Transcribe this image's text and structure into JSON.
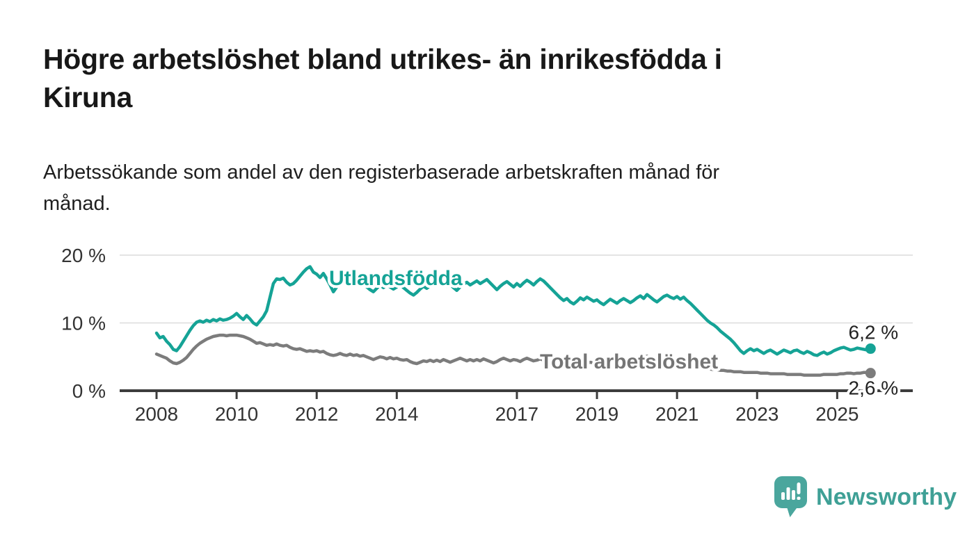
{
  "header": {
    "title": "Högre arbetslöshet bland utrikes- än inrikesfödda i Kiruna",
    "title_lines": [
      "Högre arbetslöshet bland utrikes- än inrikesfödda i",
      "Kiruna"
    ],
    "subtitle": "Arbetssökande som andel av den registerbaserade arbetskraften månad för månad.",
    "subtitle_lines": [
      "Arbetssökande som andel av den registerbaserade arbetskraften månad för",
      "månad."
    ]
  },
  "footer": {
    "brand": "Newsworthy"
  },
  "colors": {
    "accent_teal": "#15a396",
    "logo_teal": "#4aa69d",
    "logo_text_teal": "#3fa096",
    "gray_line": "#7c7c7c",
    "axis": "#3c3c3c",
    "grid": "#dcdcdc",
    "value_label": "#222222"
  },
  "chart_data": {
    "type": "line",
    "title": "Högre arbetslöshet bland utrikes- än inrikesfödda i Kiruna",
    "subtitle": "Arbetssökande som andel av den registerbaserade arbetskraften månad för månad.",
    "grid": "horizontal",
    "x_axis": {
      "unit": "month",
      "start_year": 2008,
      "start_month": 1,
      "end_year": 2025,
      "end_month": 11,
      "tick_years": [
        2008,
        2010,
        2012,
        2014,
        2017,
        2019,
        2021,
        2023,
        2025
      ],
      "tick_labels": [
        "2008",
        "2010",
        "2012",
        "2014",
        "2017",
        "2019",
        "2021",
        "2023",
        "2025"
      ]
    },
    "y_axis": {
      "range": [
        0,
        21
      ],
      "ticks": [
        {
          "value": 0,
          "label": "0 %"
        },
        {
          "value": 10,
          "label": "10 %"
        },
        {
          "value": 20,
          "label": "20 %"
        }
      ]
    },
    "series": [
      {
        "id": "utlandsfodda",
        "name": "Utlandsfödda",
        "color": "#15a396",
        "end_value": 6.2,
        "end_value_label": "6,2 %",
        "values": [
          8.5,
          7.8,
          8.0,
          7.3,
          6.8,
          6.1,
          5.9,
          6.5,
          7.3,
          8.1,
          8.9,
          9.6,
          10.1,
          10.3,
          10.1,
          10.4,
          10.2,
          10.5,
          10.3,
          10.6,
          10.4,
          10.5,
          10.7,
          11.0,
          11.4,
          10.9,
          10.5,
          11.1,
          10.6,
          10.0,
          9.7,
          10.3,
          10.9,
          11.8,
          13.8,
          15.8,
          16.5,
          16.4,
          16.6,
          16.0,
          15.6,
          15.8,
          16.3,
          16.9,
          17.5,
          18.0,
          18.3,
          17.5,
          17.2,
          16.7,
          17.3,
          16.5,
          15.6,
          14.6,
          15.3,
          16.0,
          16.3,
          15.9,
          16.2,
          15.7,
          16.0,
          15.5,
          15.8,
          15.3,
          14.9,
          14.6,
          15.1,
          15.6,
          15.2,
          15.6,
          15.3,
          15.0,
          15.3,
          15.7,
          15.2,
          14.8,
          14.4,
          14.1,
          14.5,
          15.0,
          15.4,
          15.1,
          15.5,
          15.8,
          16.0,
          15.6,
          15.9,
          15.4,
          15.7,
          15.2,
          14.8,
          15.3,
          15.7,
          16.0,
          15.6,
          15.9,
          16.2,
          15.8,
          16.1,
          16.4,
          15.9,
          15.4,
          14.9,
          15.4,
          15.8,
          16.1,
          15.7,
          15.3,
          15.8,
          15.4,
          15.9,
          16.3,
          16.0,
          15.6,
          16.1,
          16.5,
          16.2,
          15.7,
          15.2,
          14.7,
          14.2,
          13.7,
          13.3,
          13.6,
          13.1,
          12.8,
          13.2,
          13.7,
          13.4,
          13.8,
          13.5,
          13.2,
          13.4,
          13.0,
          12.7,
          13.1,
          13.5,
          13.2,
          12.9,
          13.3,
          13.6,
          13.3,
          13.0,
          13.3,
          13.7,
          14.0,
          13.6,
          14.2,
          13.8,
          13.4,
          13.1,
          13.5,
          13.9,
          14.1,
          13.8,
          13.6,
          13.9,
          13.5,
          13.8,
          13.3,
          12.9,
          12.4,
          11.9,
          11.4,
          10.9,
          10.4,
          10.0,
          9.7,
          9.3,
          8.8,
          8.4,
          8.0,
          7.6,
          7.1,
          6.5,
          5.9,
          5.5,
          5.9,
          6.2,
          5.9,
          6.1,
          5.8,
          5.5,
          5.8,
          6.0,
          5.7,
          5.4,
          5.7,
          6.0,
          5.8,
          5.6,
          5.9,
          6.0,
          5.7,
          5.5,
          5.8,
          5.6,
          5.3,
          5.2,
          5.5,
          5.7,
          5.4,
          5.6,
          5.9,
          6.1,
          6.3,
          6.4,
          6.2,
          6.0,
          6.1,
          6.3,
          6.2,
          6.1,
          6.0,
          6.2
        ]
      },
      {
        "id": "total",
        "name": "Total arbetslöshet",
        "color": "#7c7c7c",
        "end_value": 2.6,
        "end_value_label": "2,6 %",
        "values": [
          5.4,
          5.2,
          5.0,
          4.8,
          4.4,
          4.1,
          4.0,
          4.2,
          4.5,
          4.9,
          5.5,
          6.1,
          6.6,
          7.0,
          7.3,
          7.6,
          7.8,
          8.0,
          8.1,
          8.2,
          8.2,
          8.1,
          8.2,
          8.2,
          8.2,
          8.1,
          8.0,
          7.8,
          7.6,
          7.3,
          7.0,
          7.1,
          6.9,
          6.7,
          6.8,
          6.7,
          6.9,
          6.7,
          6.6,
          6.7,
          6.4,
          6.2,
          6.1,
          6.2,
          6.0,
          5.8,
          5.9,
          5.8,
          5.9,
          5.7,
          5.8,
          5.5,
          5.3,
          5.2,
          5.3,
          5.5,
          5.3,
          5.2,
          5.4,
          5.2,
          5.3,
          5.1,
          5.2,
          5.0,
          4.8,
          4.6,
          4.8,
          5.0,
          4.9,
          4.7,
          4.9,
          4.7,
          4.8,
          4.6,
          4.5,
          4.6,
          4.3,
          4.1,
          4.0,
          4.2,
          4.4,
          4.3,
          4.5,
          4.3,
          4.5,
          4.3,
          4.6,
          4.4,
          4.2,
          4.4,
          4.6,
          4.8,
          4.6,
          4.4,
          4.6,
          4.4,
          4.6,
          4.4,
          4.7,
          4.5,
          4.3,
          4.1,
          4.3,
          4.6,
          4.8,
          4.6,
          4.4,
          4.6,
          4.5,
          4.3,
          4.6,
          4.8,
          4.6,
          4.4,
          4.5,
          4.7,
          4.5,
          4.4,
          4.6,
          4.4,
          4.3,
          4.2,
          4.4,
          4.2,
          4.0,
          4.1,
          4.3,
          4.4,
          4.2,
          4.1,
          4.2,
          4.1,
          4.2,
          4.0,
          4.1,
          4.3,
          4.1,
          4.0,
          4.2,
          4.3,
          4.1,
          4.0,
          4.1,
          4.2,
          4.4,
          4.7,
          4.9,
          5.1,
          4.9,
          4.7,
          4.6,
          4.5,
          4.4,
          4.3,
          4.2,
          4.1,
          4.0,
          3.9,
          3.8,
          3.7,
          3.6,
          3.5,
          3.4,
          3.3,
          3.3,
          3.2,
          3.2,
          3.1,
          3.1,
          3.0,
          3.0,
          2.9,
          2.9,
          2.8,
          2.8,
          2.8,
          2.7,
          2.7,
          2.7,
          2.7,
          2.7,
          2.6,
          2.6,
          2.6,
          2.5,
          2.5,
          2.5,
          2.5,
          2.5,
          2.4,
          2.4,
          2.4,
          2.4,
          2.4,
          2.3,
          2.3,
          2.3,
          2.3,
          2.3,
          2.3,
          2.4,
          2.4,
          2.4,
          2.4,
          2.4,
          2.5,
          2.5,
          2.6,
          2.6,
          2.5,
          2.6,
          2.6,
          2.7,
          2.7,
          2.6
        ]
      }
    ]
  }
}
